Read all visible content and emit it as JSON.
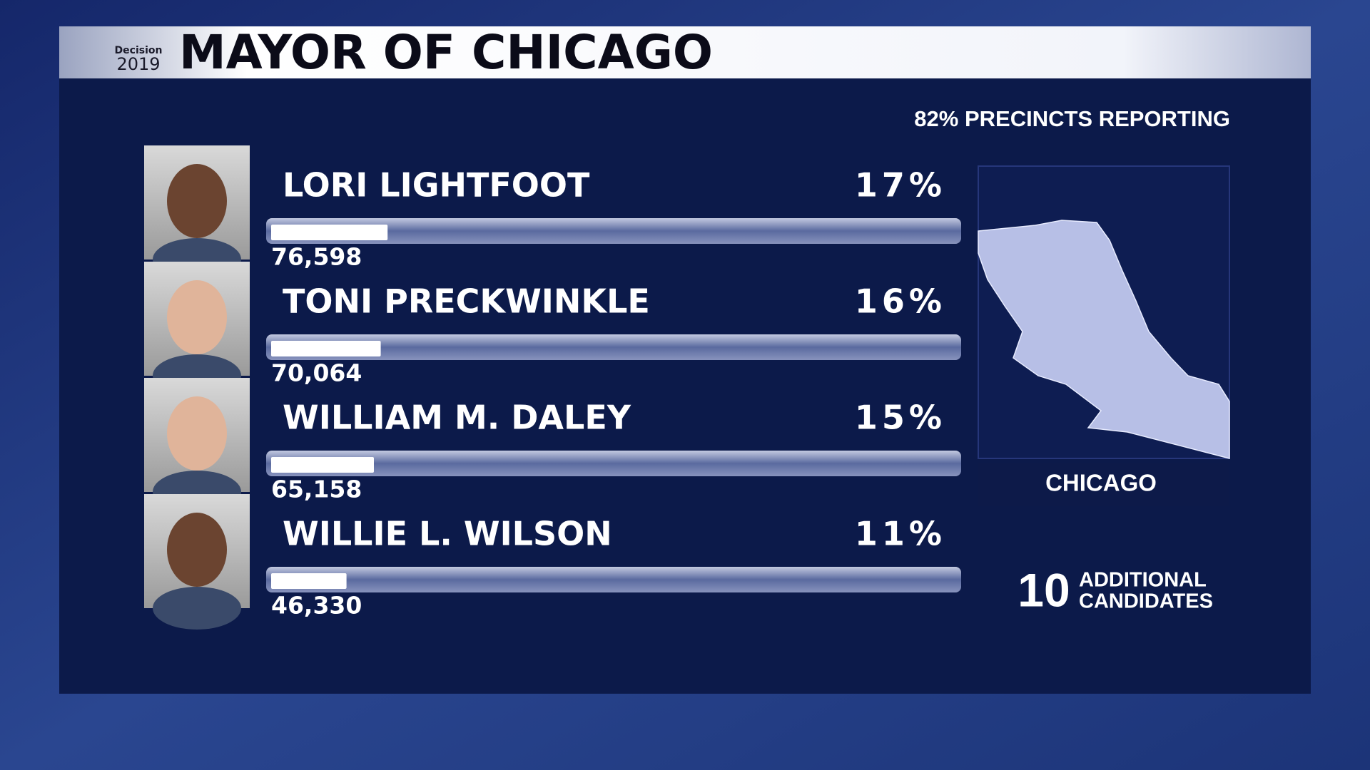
{
  "header": {
    "logo_word": "Decision",
    "logo_year": "2019",
    "title": "MAYOR OF CHICAGO"
  },
  "reporting": "82% PRECINCTS REPORTING",
  "chart_data": {
    "type": "bar",
    "categories": [
      "LORI LIGHTFOOT",
      "TONI PRECKWINKLE",
      "WILLIAM M. DALEY",
      "WILLIE L.  WILSON"
    ],
    "values": [
      17,
      16,
      15,
      11
    ],
    "value_labels": [
      "17%",
      "16%",
      "15%",
      "11%"
    ],
    "votes": [
      "76,598",
      "70,064",
      "65,158",
      "46,330"
    ],
    "xlim": [
      0,
      100
    ],
    "color": "#ffffff"
  },
  "map": {
    "label": "CHICAGO"
  },
  "additional": {
    "count": 10,
    "lines": [
      "ADDITIONAL",
      "CANDIDATES"
    ]
  }
}
